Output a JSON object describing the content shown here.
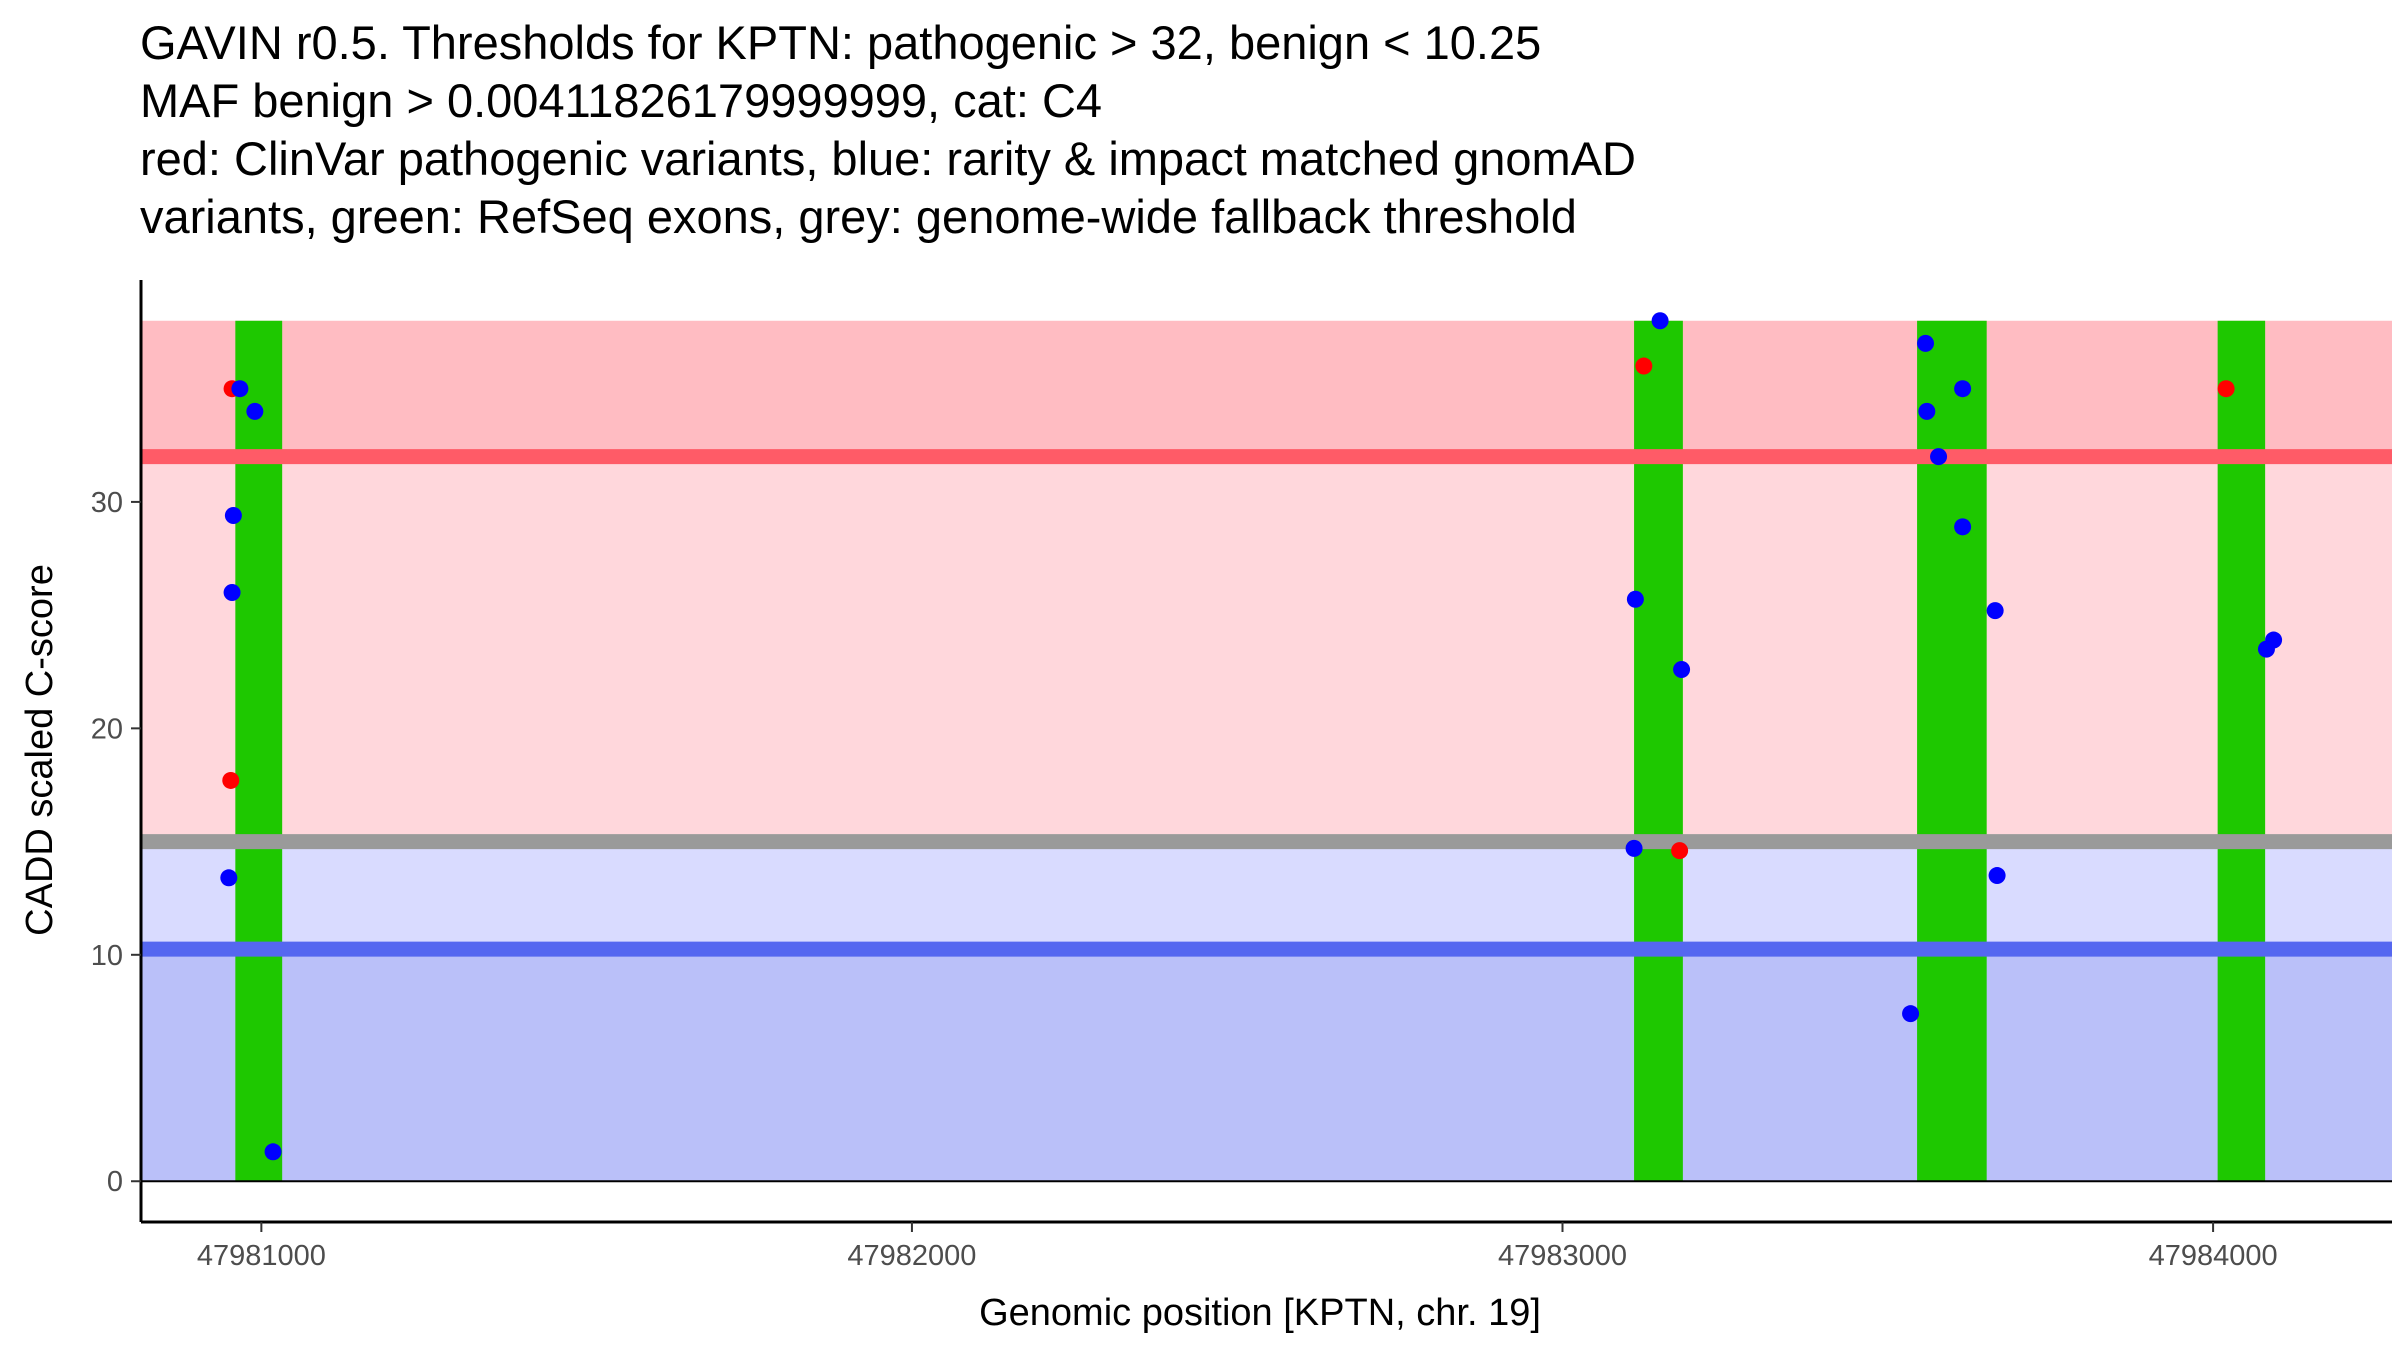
{
  "title_lines": [
    "GAVIN r0.5. Thresholds for KPTN: pathogenic > 32, benign < 10.25",
    "MAF benign > 0.00411826179999999, cat: C4",
    "red: ClinVar pathogenic variants, blue: rarity & impact matched gnomAD",
    "variants, green: RefSeq exons, grey: genome-wide fallback threshold"
  ],
  "chart_data": {
    "type": "scatter",
    "title": "GAVIN r0.5. Thresholds for KPTN: pathogenic > 32, benign < 10.25",
    "xlabel": "Genomic position [KPTN, chr. 19]",
    "ylabel": "CADD scaled C-score",
    "xlim": [
      47980815,
      47984275
    ],
    "ylim": [
      -1.8,
      39.8
    ],
    "x_ticks": [
      47981000,
      47982000,
      47983000,
      47984000
    ],
    "x_tick_labels": [
      "47981000",
      "47982000",
      "47983000",
      "47984000"
    ],
    "y_ticks": [
      0,
      10,
      20,
      30
    ],
    "y_tick_labels": [
      "0",
      "10",
      "20",
      "30"
    ],
    "thresholds": {
      "pathogenic": 32,
      "benign": 10.25,
      "fallback": 15,
      "max": 38,
      "min": 0
    },
    "regions": [
      {
        "name": "pathogenic-zone-upper",
        "y0": 32,
        "y1": 38,
        "color": "#ffbcc2"
      },
      {
        "name": "pathogenic-zone-lower",
        "y0": 15,
        "y1": 32,
        "color": "#ffd7dc"
      },
      {
        "name": "gray-zone",
        "y0": 10.25,
        "y1": 15,
        "color": "#d9dbff"
      },
      {
        "name": "benign-zone",
        "y0": 0,
        "y1": 10.25,
        "color": "#bac0f9"
      }
    ],
    "threshold_lines": [
      {
        "name": "pathogenic-threshold-line",
        "y": 32,
        "color": "#ff5b67"
      },
      {
        "name": "fallback-threshold-line",
        "y": 15,
        "color": "#9a9a9a"
      },
      {
        "name": "benign-threshold-line",
        "y": 10.25,
        "color": "#5567f0"
      }
    ],
    "exons": [
      {
        "start": 47980960,
        "end": 47981032
      },
      {
        "start": 47983110,
        "end": 47983185
      },
      {
        "start": 47983545,
        "end": 47983652
      },
      {
        "start": 47984007,
        "end": 47984080
      }
    ],
    "series": [
      {
        "name": "ClinVar pathogenic variants",
        "color": "#ff0000",
        "points": [
          {
            "x": 47980955,
            "y": 35
          },
          {
            "x": 47980953,
            "y": 17.7
          },
          {
            "x": 47983125,
            "y": 36
          },
          {
            "x": 47983180,
            "y": 14.6
          },
          {
            "x": 47984020,
            "y": 35
          }
        ]
      },
      {
        "name": "rarity & impact matched gnomAD variants",
        "color": "#0000ff",
        "points": [
          {
            "x": 47980967,
            "y": 35
          },
          {
            "x": 47980990,
            "y": 34
          },
          {
            "x": 47980957,
            "y": 29.4
          },
          {
            "x": 47980955,
            "y": 26
          },
          {
            "x": 47980950,
            "y": 13.4
          },
          {
            "x": 47981018,
            "y": 1.3
          },
          {
            "x": 47983150,
            "y": 38
          },
          {
            "x": 47983112,
            "y": 25.7
          },
          {
            "x": 47983183,
            "y": 22.6
          },
          {
            "x": 47983110,
            "y": 14.7
          },
          {
            "x": 47983558,
            "y": 37
          },
          {
            "x": 47983560,
            "y": 34
          },
          {
            "x": 47983578,
            "y": 32
          },
          {
            "x": 47983615,
            "y": 35
          },
          {
            "x": 47983615,
            "y": 28.9
          },
          {
            "x": 47983665,
            "y": 25.2
          },
          {
            "x": 47983668,
            "y": 13.5
          },
          {
            "x": 47983535,
            "y": 7.4
          },
          {
            "x": 47984082,
            "y": 23.5
          },
          {
            "x": 47984093,
            "y": 23.9
          }
        ]
      }
    ]
  }
}
